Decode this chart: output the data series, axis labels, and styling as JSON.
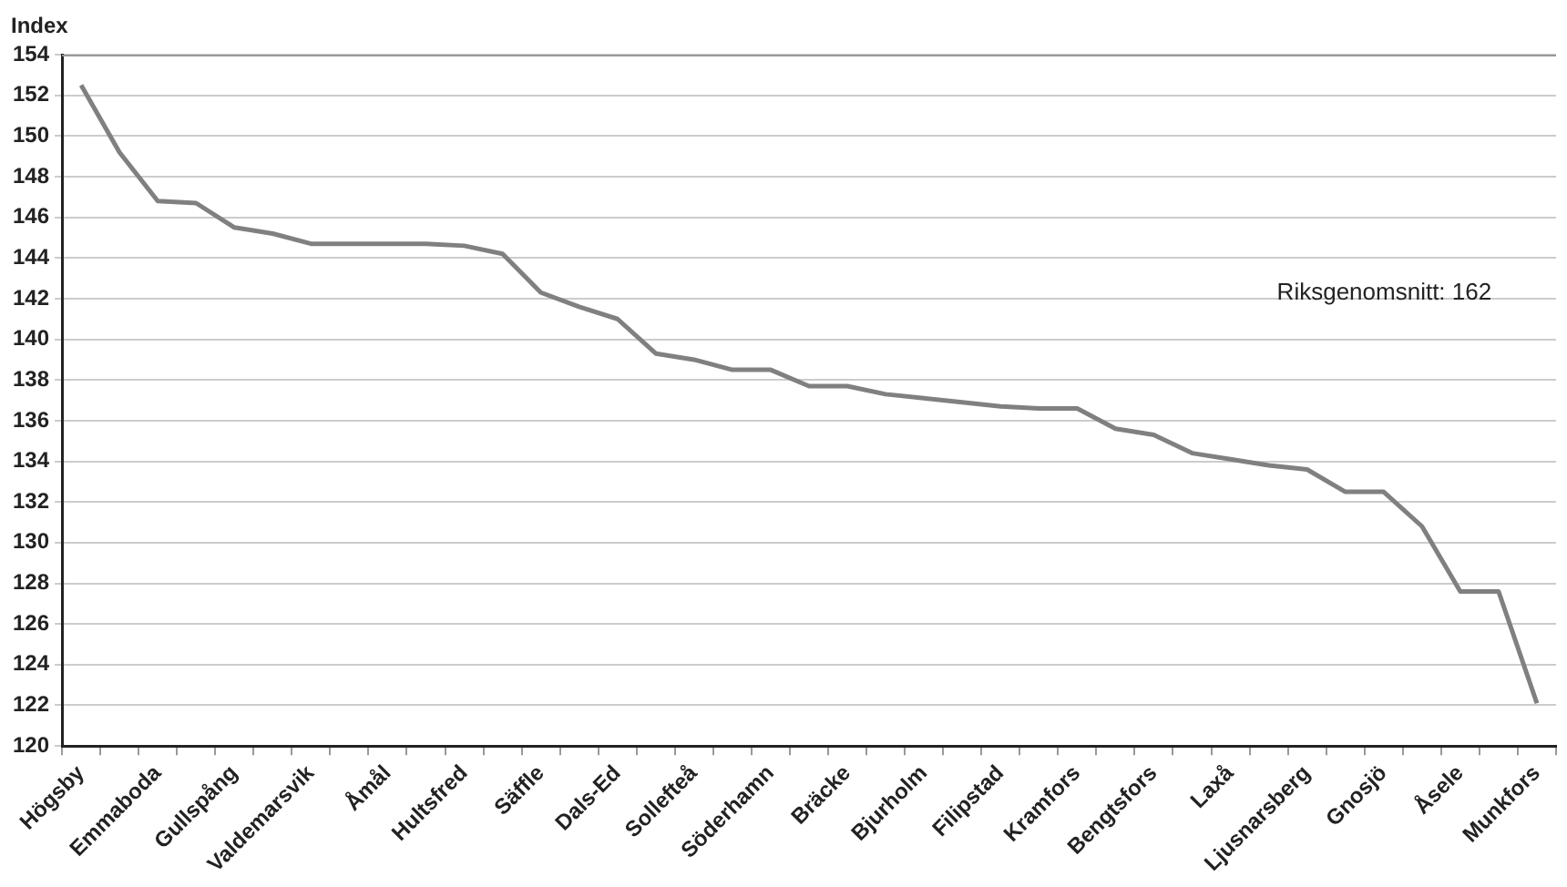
{
  "chart_data": {
    "type": "line",
    "ylabel": "Index",
    "categories": [
      "Högsby",
      null,
      "Emmaboda",
      null,
      "Gullspång",
      null,
      "Valdemarsvik",
      null,
      "Åmål",
      null,
      "Hultsfred",
      null,
      "Säffle",
      null,
      "Dals-Ed",
      null,
      "Sollefteå",
      null,
      "Söderhamn",
      null,
      "Bräcke",
      null,
      "Bjurholm",
      null,
      "Filipstad",
      null,
      "Kramfors",
      null,
      "Bengtsfors",
      null,
      "Laxå",
      null,
      "Ljusnarsberg",
      null,
      "Gnosjö",
      null,
      "Åsele",
      null,
      "Munkfors"
    ],
    "series": [
      {
        "color": "#808080",
        "values": [
          152.5,
          149.2,
          146.8,
          146.7,
          145.5,
          145.2,
          144.7,
          144.7,
          144.7,
          144.7,
          144.6,
          144.2,
          142.3,
          141.6,
          141.0,
          139.3,
          139.0,
          138.5,
          138.5,
          137.7,
          137.7,
          137.3,
          137.1,
          136.9,
          136.7,
          136.6,
          136.6,
          135.6,
          135.3,
          134.4,
          134.1,
          133.8,
          133.6,
          132.5,
          132.5,
          130.8,
          127.6,
          127.6,
          122.1
        ]
      }
    ],
    "ylim": [
      120,
      154
    ],
    "yticks": [
      120,
      122,
      124,
      126,
      128,
      130,
      132,
      134,
      136,
      138,
      140,
      142,
      144,
      146,
      148,
      150,
      152,
      154
    ],
    "grid": "y",
    "legend": false,
    "marker": "none",
    "line_style": "solid",
    "annotations": [
      "Riksgenomsnitt: 162"
    ]
  }
}
